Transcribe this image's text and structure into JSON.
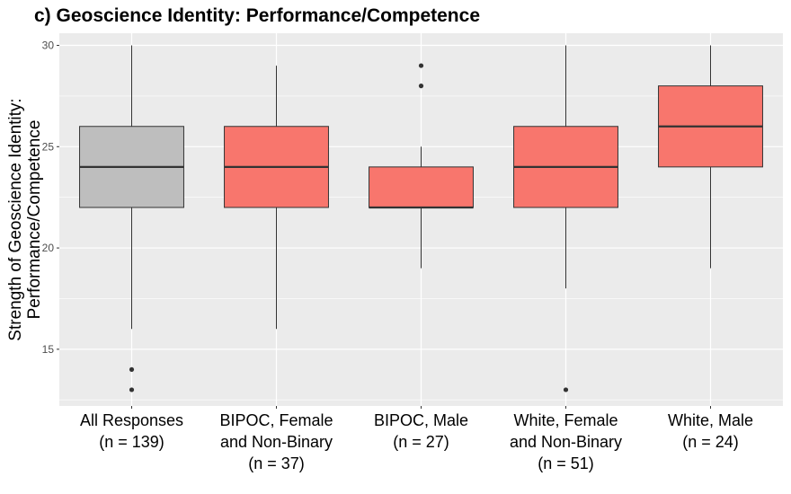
{
  "chart_data": {
    "type": "box",
    "title": "c)  Geoscience Identity: Performance/Competence",
    "ylabel_lines": [
      "Strength of Geoscience Identity:",
      "Performance/Competence"
    ],
    "xlabel": "",
    "ylim": [
      12.2,
      30.6
    ],
    "yticks": [
      15,
      20,
      25,
      30
    ],
    "grid": true,
    "categories": [
      {
        "label_lines": [
          "All Responses",
          "(n = 139)"
        ],
        "color": "#bebebe",
        "min": 16,
        "q1": 22,
        "median": 24,
        "q3": 26,
        "max": 30,
        "outliers": [
          14,
          13
        ]
      },
      {
        "label_lines": [
          "BIPOC, Female",
          "and Non-Binary",
          "(n = 37)"
        ],
        "color": "#f8766d",
        "min": 16,
        "q1": 22,
        "median": 24,
        "q3": 26,
        "max": 29,
        "outliers": []
      },
      {
        "label_lines": [
          "BIPOC, Male",
          "(n = 27)"
        ],
        "color": "#f8766d",
        "min": 19,
        "q1": 22,
        "median": 22,
        "q3": 24,
        "max": 25,
        "outliers": [
          29,
          28
        ]
      },
      {
        "label_lines": [
          "White, Female",
          "and Non-Binary",
          "(n = 51)"
        ],
        "color": "#f8766d",
        "min": 18,
        "q1": 22,
        "median": 24,
        "q3": 26,
        "max": 30,
        "outliers": [
          13
        ]
      },
      {
        "label_lines": [
          "White, Male",
          "(n = 24)"
        ],
        "color": "#f8766d",
        "min": 19,
        "q1": 24,
        "median": 26,
        "q3": 28,
        "max": 30,
        "outliers": []
      }
    ],
    "panel_background": "#ebebeb",
    "grid_color": "#ffffff"
  }
}
